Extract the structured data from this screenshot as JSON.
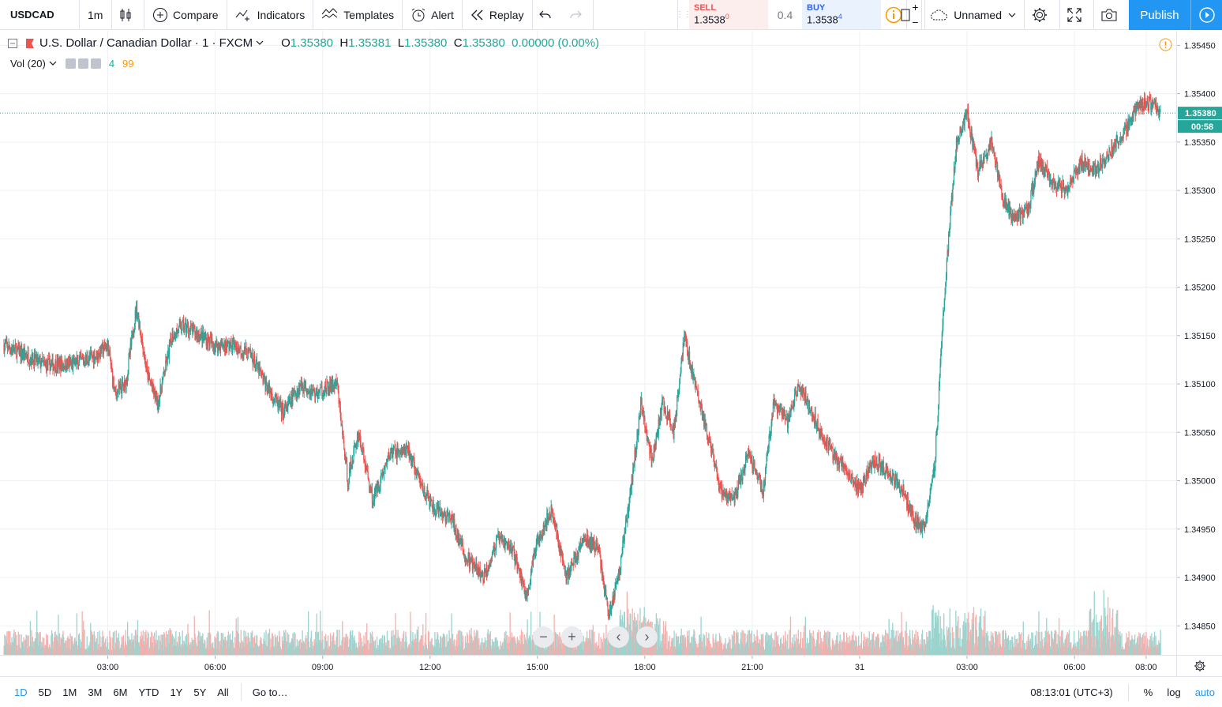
{
  "toolbar": {
    "symbol": "USDCAD",
    "interval": "1m",
    "compare": "Compare",
    "indicators": "Indicators",
    "templates": "Templates",
    "alert": "Alert",
    "replay": "Replay",
    "layout_name": "Unnamed",
    "publish": "Publish"
  },
  "trade": {
    "sell_label": "SELL",
    "sell_price": "1.3538",
    "sell_frac": "0",
    "spread": "0.4",
    "buy_label": "BUY",
    "buy_price": "1.3538",
    "buy_frac": "4",
    "plus": "+",
    "minus": "−"
  },
  "legend": {
    "name": "U.S. Dollar / Canadian Dollar",
    "interval": "1",
    "exchange": "FXCM",
    "o_key": "O",
    "o_val": "1.35380",
    "h_key": "H",
    "h_val": "1.35381",
    "l_key": "L",
    "l_val": "1.35380",
    "c_key": "C",
    "c_val": "1.35380",
    "change": "0.00000 (0.00%)",
    "vol_label": "Vol (20)",
    "vol_value": "4",
    "vol_ma": "99"
  },
  "price_axis": {
    "current_price": "1.35380",
    "countdown": "00:58"
  },
  "bottom": {
    "ranges": [
      "1D",
      "5D",
      "1M",
      "3M",
      "6M",
      "YTD",
      "1Y",
      "5Y",
      "All"
    ],
    "active_range": "1D",
    "goto": "Go to…",
    "clock": "08:13:01 (UTC+3)",
    "percent": "%",
    "log": "log",
    "auto": "auto"
  },
  "colors": {
    "up": "#26a69a",
    "down": "#ef5350",
    "accent": "#2196f3",
    "vol_up": "#9bd3ce",
    "vol_down": "#f5b0ae"
  },
  "chart_data": {
    "type": "candlestick",
    "symbol": "USDCAD",
    "ylim": [
      1.3482,
      1.35465
    ],
    "y_ticks": [
      1.3485,
      1.349,
      1.3495,
      1.35,
      1.3505,
      1.351,
      1.3515,
      1.352,
      1.3525,
      1.353,
      1.3535,
      1.354,
      1.3545
    ],
    "y_tick_labels": [
      "1.34850",
      "1.34900",
      "1.34950",
      "1.35000",
      "1.35050",
      "1.35100",
      "1.35150",
      "1.35200",
      "1.35250",
      "1.35300",
      "1.35350",
      "1.35400",
      "1.35450"
    ],
    "x_ticks": [
      "03:00",
      "06:00",
      "09:00",
      "12:00",
      "15:00",
      "18:00",
      "21:00",
      "31",
      "03:00",
      "06:00",
      "08:00"
    ],
    "x_tick_hours": [
      3,
      6,
      9,
      12,
      15,
      18,
      21,
      24,
      27,
      30,
      32
    ],
    "x_range_hours": [
      0.1,
      32.4
    ],
    "last_price": 1.3538,
    "price_path": [
      [
        0.1,
        1.3514
      ],
      [
        0.7,
        1.3513
      ],
      [
        1.2,
        1.3512
      ],
      [
        2.0,
        1.3512
      ],
      [
        2.7,
        1.3513
      ],
      [
        3.0,
        1.3514
      ],
      [
        3.2,
        1.3509
      ],
      [
        3.5,
        1.351
      ],
      [
        3.8,
        1.3518
      ],
      [
        4.1,
        1.3511
      ],
      [
        4.4,
        1.3508
      ],
      [
        4.8,
        1.3515
      ],
      [
        5.1,
        1.3516
      ],
      [
        5.6,
        1.3515
      ],
      [
        6.0,
        1.3514
      ],
      [
        6.5,
        1.3514
      ],
      [
        7.0,
        1.3513
      ],
      [
        7.4,
        1.351
      ],
      [
        7.9,
        1.3507
      ],
      [
        8.4,
        1.351
      ],
      [
        8.8,
        1.3509
      ],
      [
        9.4,
        1.351
      ],
      [
        9.7,
        1.35
      ],
      [
        10.0,
        1.3505
      ],
      [
        10.4,
        1.3498
      ],
      [
        10.9,
        1.3503
      ],
      [
        11.4,
        1.3503
      ],
      [
        11.7,
        1.35
      ],
      [
        12.1,
        1.3497
      ],
      [
        12.6,
        1.3496
      ],
      [
        13.0,
        1.3492
      ],
      [
        13.5,
        1.349
      ],
      [
        13.9,
        1.3494
      ],
      [
        14.3,
        1.3493
      ],
      [
        14.7,
        1.3488
      ],
      [
        15.0,
        1.3494
      ],
      [
        15.4,
        1.3497
      ],
      [
        15.8,
        1.349
      ],
      [
        16.3,
        1.3494
      ],
      [
        16.7,
        1.3493
      ],
      [
        17.0,
        1.3486
      ],
      [
        17.3,
        1.3491
      ],
      [
        17.6,
        1.3499
      ],
      [
        17.9,
        1.3508
      ],
      [
        18.2,
        1.3502
      ],
      [
        18.5,
        1.3508
      ],
      [
        18.8,
        1.3505
      ],
      [
        19.1,
        1.3515
      ],
      [
        19.4,
        1.351
      ],
      [
        19.8,
        1.3504
      ],
      [
        20.1,
        1.3499
      ],
      [
        20.5,
        1.3498
      ],
      [
        20.9,
        1.3503
      ],
      [
        21.3,
        1.3499
      ],
      [
        21.6,
        1.3508
      ],
      [
        22.0,
        1.3506
      ],
      [
        22.3,
        1.351
      ],
      [
        22.8,
        1.3506
      ],
      [
        23.2,
        1.3503
      ],
      [
        23.6,
        1.3501
      ],
      [
        24.0,
        1.3499
      ],
      [
        24.4,
        1.3502
      ],
      [
        24.8,
        1.3501
      ],
      [
        25.2,
        1.3499
      ],
      [
        25.5,
        1.3496
      ],
      [
        25.8,
        1.3495
      ],
      [
        26.1,
        1.3502
      ],
      [
        26.4,
        1.3521
      ],
      [
        26.7,
        1.3535
      ],
      [
        27.0,
        1.3538
      ],
      [
        27.3,
        1.3532
      ],
      [
        27.7,
        1.3535
      ],
      [
        28.0,
        1.3529
      ],
      [
        28.3,
        1.3527
      ],
      [
        28.7,
        1.3528
      ],
      [
        29.0,
        1.3533
      ],
      [
        29.4,
        1.3531
      ],
      [
        29.8,
        1.353
      ],
      [
        30.2,
        1.3533
      ],
      [
        30.6,
        1.3532
      ],
      [
        31.0,
        1.3534
      ],
      [
        31.4,
        1.3536
      ],
      [
        31.8,
        1.3539
      ],
      [
        32.1,
        1.3539
      ],
      [
        32.4,
        1.3538
      ]
    ]
  }
}
